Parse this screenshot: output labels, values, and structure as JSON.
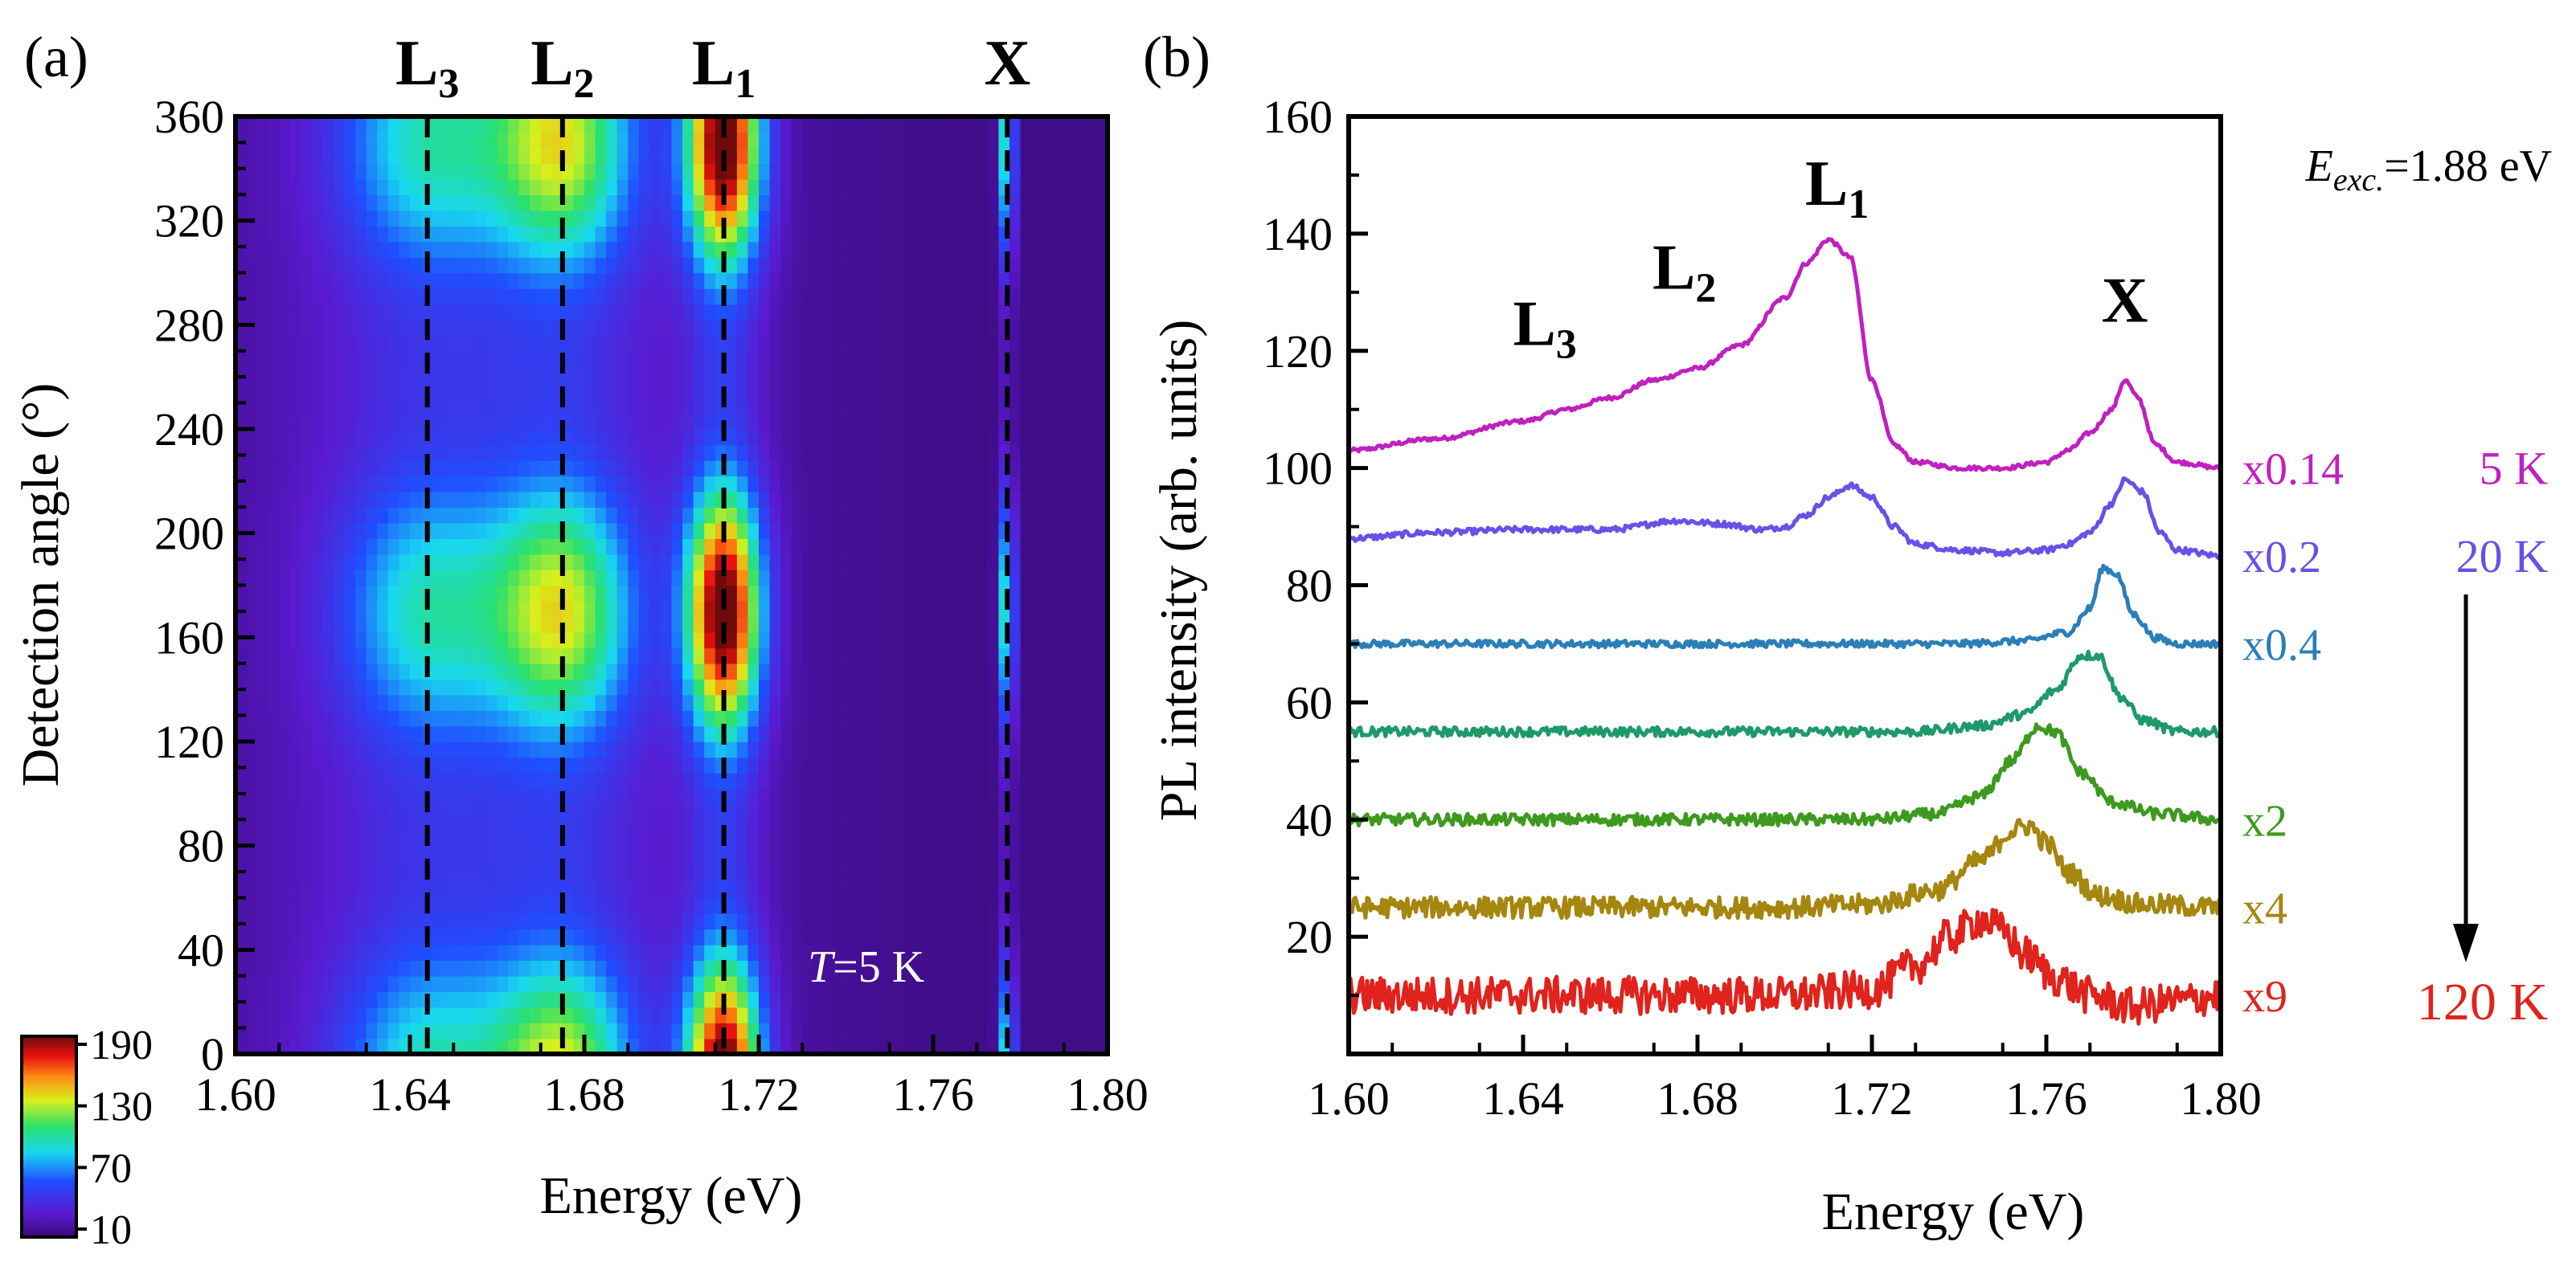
{
  "panels": {
    "a": {
      "panel_label": "(a)",
      "ylabel": "Detection angle  (°)",
      "xlabel": "Energy (eV)",
      "annotation_T_italic": "T",
      "annotation_T_rest": "=5 K",
      "peak_labels": [
        {
          "main": "L",
          "sub": "3",
          "energy": 1.644
        },
        {
          "main": "L",
          "sub": "2",
          "energy": 1.675
        },
        {
          "main": "L",
          "sub": "1",
          "energy": 1.712
        },
        {
          "main": "X",
          "sub": "",
          "energy": 1.777
        }
      ],
      "colorbar_ticks": [
        "190",
        "130",
        "70",
        "10"
      ]
    },
    "b": {
      "panel_label": "(b)",
      "ylabel": "PL intensity (arb. units)",
      "xlabel": "Energy (eV)",
      "exc_E": "E",
      "exc_sub": "exc.",
      "exc_val": "=1.88 eV",
      "peak_labels": [
        {
          "main": "L",
          "sub": "3"
        },
        {
          "main": "L",
          "sub": "2"
        },
        {
          "main": "L",
          "sub": "1"
        },
        {
          "main": "X",
          "sub": ""
        }
      ],
      "scale_labels": [
        "x0.14",
        "x0.2",
        "x0.4",
        "x2",
        "x4",
        "x9"
      ],
      "temp_labels": [
        "5 K",
        "20 K",
        "120 K"
      ]
    }
  },
  "chart_data": [
    {
      "type": "heatmap",
      "panel": "a",
      "x_axis": {
        "label": "Energy (eV)",
        "range": [
          1.6,
          1.8
        ],
        "ticks": [
          "1.60",
          "1.64",
          "1.68",
          "1.72",
          "1.76",
          "1.80"
        ]
      },
      "y_axis": {
        "label": "Detection angle (°)",
        "range": [
          0,
          360
        ],
        "ticks": [
          "0",
          "40",
          "80",
          "120",
          "160",
          "200",
          "240",
          "280",
          "320",
          "360"
        ]
      },
      "colorbar": {
        "range": [
          10,
          190
        ],
        "ticks": [
          "10",
          "70",
          "130",
          "190"
        ],
        "colormap": "rainbow (violet-blue-cyan-green-yellow-red)"
      },
      "peak_energies": {
        "L3": 1.644,
        "L2": 1.675,
        "L1": 1.712,
        "X": 1.777
      },
      "angular_maxima_deg": [
        0,
        170,
        345
      ],
      "angular_minima_deg": [
        90,
        260
      ],
      "max_intensity": 190,
      "annotation": "T=5 K"
    },
    {
      "type": "line",
      "panel": "b",
      "x_axis": {
        "label": "Energy (eV)",
        "range": [
          1.6,
          1.8
        ],
        "ticks": [
          "1.60",
          "1.64",
          "1.68",
          "1.72",
          "1.76",
          "1.80"
        ]
      },
      "y_axis": {
        "label": "PL intensity (arb. units)",
        "range": [
          0,
          160
        ],
        "ticks": [
          "20",
          "40",
          "60",
          "80",
          "100",
          "120",
          "140",
          "160"
        ]
      },
      "annotation": "Eexc.=1.88 eV",
      "series": [
        {
          "scale": "x0.14",
          "temperature": "5 K",
          "color": "#c020c0",
          "x": [
            1.6,
            1.62,
            1.64,
            1.65,
            1.66,
            1.67,
            1.68,
            1.69,
            1.7,
            1.705,
            1.71,
            1.715,
            1.72,
            1.725,
            1.73,
            1.74,
            1.75,
            1.76,
            1.765,
            1.77,
            1.775,
            1.778,
            1.781,
            1.785,
            1.79,
            1.8
          ],
          "y": [
            103,
            105,
            108,
            110,
            112,
            115,
            117,
            121,
            129,
            135,
            139,
            136,
            115,
            104,
            101,
            100,
            100,
            101,
            103,
            106,
            110,
            115,
            112,
            104,
            101,
            100
          ]
        },
        {
          "scale": "x0.2",
          "temperature": "20 K",
          "color": "#6a4fe8",
          "x": [
            1.6,
            1.62,
            1.64,
            1.66,
            1.675,
            1.685,
            1.695,
            1.7,
            1.705,
            1.71,
            1.715,
            1.72,
            1.725,
            1.73,
            1.74,
            1.75,
            1.76,
            1.765,
            1.77,
            1.775,
            1.778,
            1.782,
            1.786,
            1.79,
            1.8
          ],
          "y": [
            88,
            89,
            89.5,
            89.5,
            91,
            90.5,
            89.5,
            90,
            92,
            95,
            97,
            95,
            90,
            87,
            86,
            85.5,
            86,
            87,
            89,
            94,
            98,
            96,
            89,
            86,
            85
          ]
        },
        {
          "scale": "x0.4",
          "temperature": "",
          "color": "#2b7fb8",
          "x": [
            1.6,
            1.65,
            1.7,
            1.74,
            1.755,
            1.765,
            1.77,
            1.773,
            1.776,
            1.78,
            1.785,
            1.79,
            1.8
          ],
          "y": [
            70,
            70,
            70,
            70,
            70.5,
            72,
            76,
            83,
            82,
            75,
            71,
            70,
            70
          ]
        },
        {
          "scale": "",
          "temperature": "",
          "color": "#1e9a6a",
          "x": [
            1.6,
            1.65,
            1.7,
            1.73,
            1.745,
            1.755,
            1.762,
            1.768,
            1.772,
            1.777,
            1.782,
            1.79,
            1.8
          ],
          "y": [
            55,
            55,
            55,
            55,
            56,
            58,
            62,
            68,
            68,
            61,
            57,
            55,
            55
          ]
        },
        {
          "scale": "x2",
          "temperature": "",
          "color": "#3d9a1e",
          "x": [
            1.6,
            1.65,
            1.7,
            1.72,
            1.735,
            1.745,
            1.752,
            1.758,
            1.762,
            1.768,
            1.775,
            1.785,
            1.8
          ],
          "y": [
            40,
            40,
            40,
            40,
            41,
            44,
            50,
            56,
            55,
            48,
            43,
            41,
            40
          ]
        },
        {
          "scale": "x4",
          "temperature": "",
          "color": "#a5860e",
          "x": [
            1.6,
            1.65,
            1.7,
            1.72,
            1.735,
            1.745,
            1.752,
            1.756,
            1.76,
            1.765,
            1.772,
            1.782,
            1.8
          ],
          "y": [
            25,
            25,
            25,
            25.5,
            28,
            33,
            38,
            39,
            36,
            31,
            27,
            25.5,
            25
          ]
        },
        {
          "scale": "x9",
          "temperature": "120 K",
          "color": "#e0231c",
          "x": [
            1.6,
            1.65,
            1.7,
            1.72,
            1.73,
            1.738,
            1.745,
            1.75,
            1.755,
            1.762,
            1.77,
            1.78,
            1.79,
            1.8
          ],
          "y": [
            10,
            10,
            10,
            11,
            15,
            20,
            23,
            21,
            17,
            13,
            10,
            8,
            9,
            10
          ]
        }
      ]
    }
  ]
}
